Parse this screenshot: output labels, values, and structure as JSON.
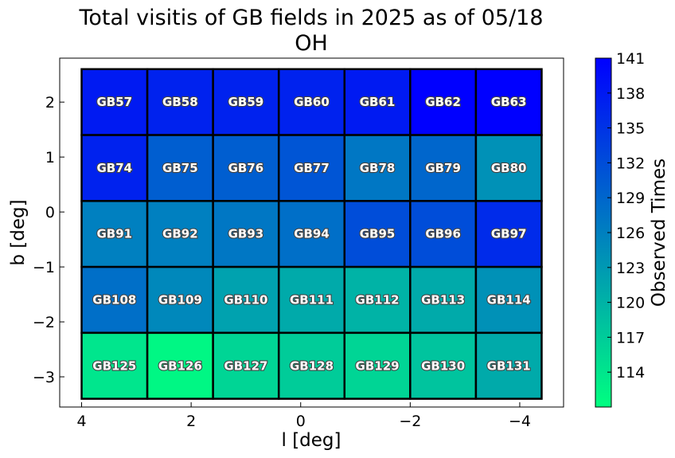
{
  "chart_data": {
    "type": "heatmap",
    "title": "Total visitis of GB fields in 2025 as of 05/18",
    "subtitle": "OH",
    "xlabel": "l [deg]",
    "ylabel": "b [deg]",
    "colorbar_label": "Observed Times",
    "xlim": [
      4.4,
      -4.8
    ],
    "ylim": [
      -3.55,
      2.8
    ],
    "x_ticks": [
      4,
      2,
      0,
      -2,
      -4
    ],
    "x_tick_labels": [
      "4",
      "2",
      "0",
      "−2",
      "−4"
    ],
    "y_ticks": [
      2,
      1,
      0,
      -1,
      -2,
      -3
    ],
    "y_tick_labels": [
      "2",
      "1",
      "0",
      "−1",
      "−2",
      "−3"
    ],
    "colorbar_range": [
      111,
      141
    ],
    "colorbar_ticks": [
      141,
      138,
      135,
      132,
      129,
      126,
      123,
      120,
      117,
      114
    ],
    "colormap": [
      "#00ff80",
      "#0000ff"
    ],
    "grid": false,
    "cell_edges": {
      "l": [
        4.0,
        2.8,
        1.6,
        0.4,
        -0.8,
        -2.0,
        -3.2,
        -4.4
      ],
      "b": [
        2.6,
        1.4,
        0.2,
        -1.0,
        -2.2,
        -3.4
      ]
    },
    "rows": [
      {
        "fields": [
          "GB57",
          "GB58",
          "GB59",
          "GB60",
          "GB61",
          "GB62",
          "GB63"
        ],
        "values": [
          138,
          137,
          137,
          137,
          138,
          141,
          141
        ]
      },
      {
        "fields": [
          "GB74",
          "GB75",
          "GB76",
          "GB77",
          "GB78",
          "GB79",
          "GB80"
        ],
        "values": [
          137,
          130,
          130,
          131,
          127,
          129,
          124
        ]
      },
      {
        "fields": [
          "GB91",
          "GB92",
          "GB93",
          "GB94",
          "GB95",
          "GB96",
          "GB97"
        ],
        "values": [
          126,
          126,
          127,
          128,
          132,
          132,
          136
        ]
      },
      {
        "fields": [
          "GB108",
          "GB109",
          "GB110",
          "GB111",
          "GB112",
          "GB113",
          "GB114"
        ],
        "values": [
          128,
          125,
          122,
          121,
          120,
          121,
          124
        ]
      },
      {
        "fields": [
          "GB125",
          "GB126",
          "GB127",
          "GB128",
          "GB129",
          "GB130",
          "GB131"
        ],
        "values": [
          114,
          112,
          116,
          117,
          116,
          118,
          121
        ]
      }
    ]
  }
}
